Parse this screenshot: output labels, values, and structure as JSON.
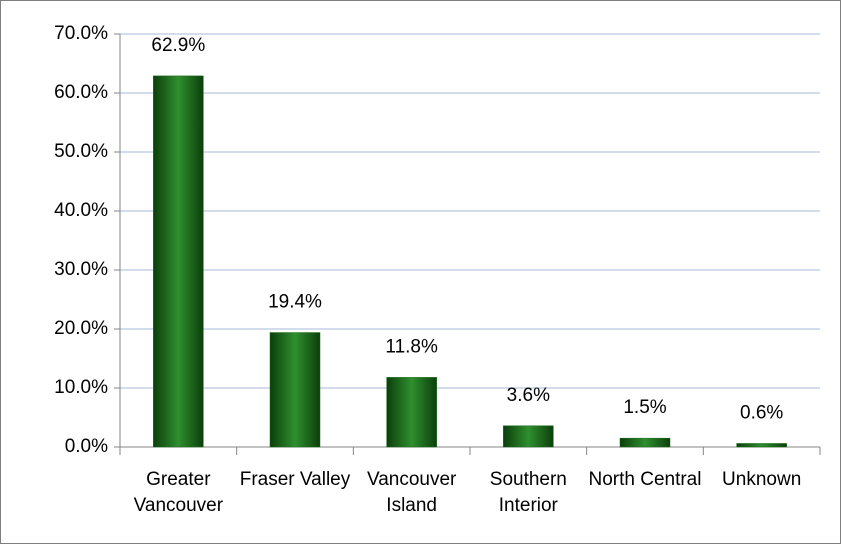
{
  "chart_data": {
    "type": "bar",
    "categories": [
      "Greater Vancouver",
      "Fraser Valley",
      "Vancouver Island",
      "Southern Interior",
      "North Central",
      "Unknown"
    ],
    "values": [
      62.9,
      19.4,
      11.8,
      3.6,
      1.5,
      0.6
    ],
    "value_labels": [
      "62.9%",
      "19.4%",
      "11.8%",
      "3.6%",
      "1.5%",
      "0.6%"
    ],
    "color": "#1a6b1a",
    "ylim": [
      0,
      70
    ],
    "yticks": [
      {
        "value": 0,
        "label": "0.0%"
      },
      {
        "value": 10,
        "label": "10.0%"
      },
      {
        "value": 20,
        "label": "20.0%"
      },
      {
        "value": 30,
        "label": "30.0%"
      },
      {
        "value": 40,
        "label": "40.0%"
      },
      {
        "value": 50,
        "label": "50.0%"
      },
      {
        "value": 60,
        "label": "60.0%"
      },
      {
        "value": 70,
        "label": "70.0%"
      }
    ],
    "grid": true
  }
}
